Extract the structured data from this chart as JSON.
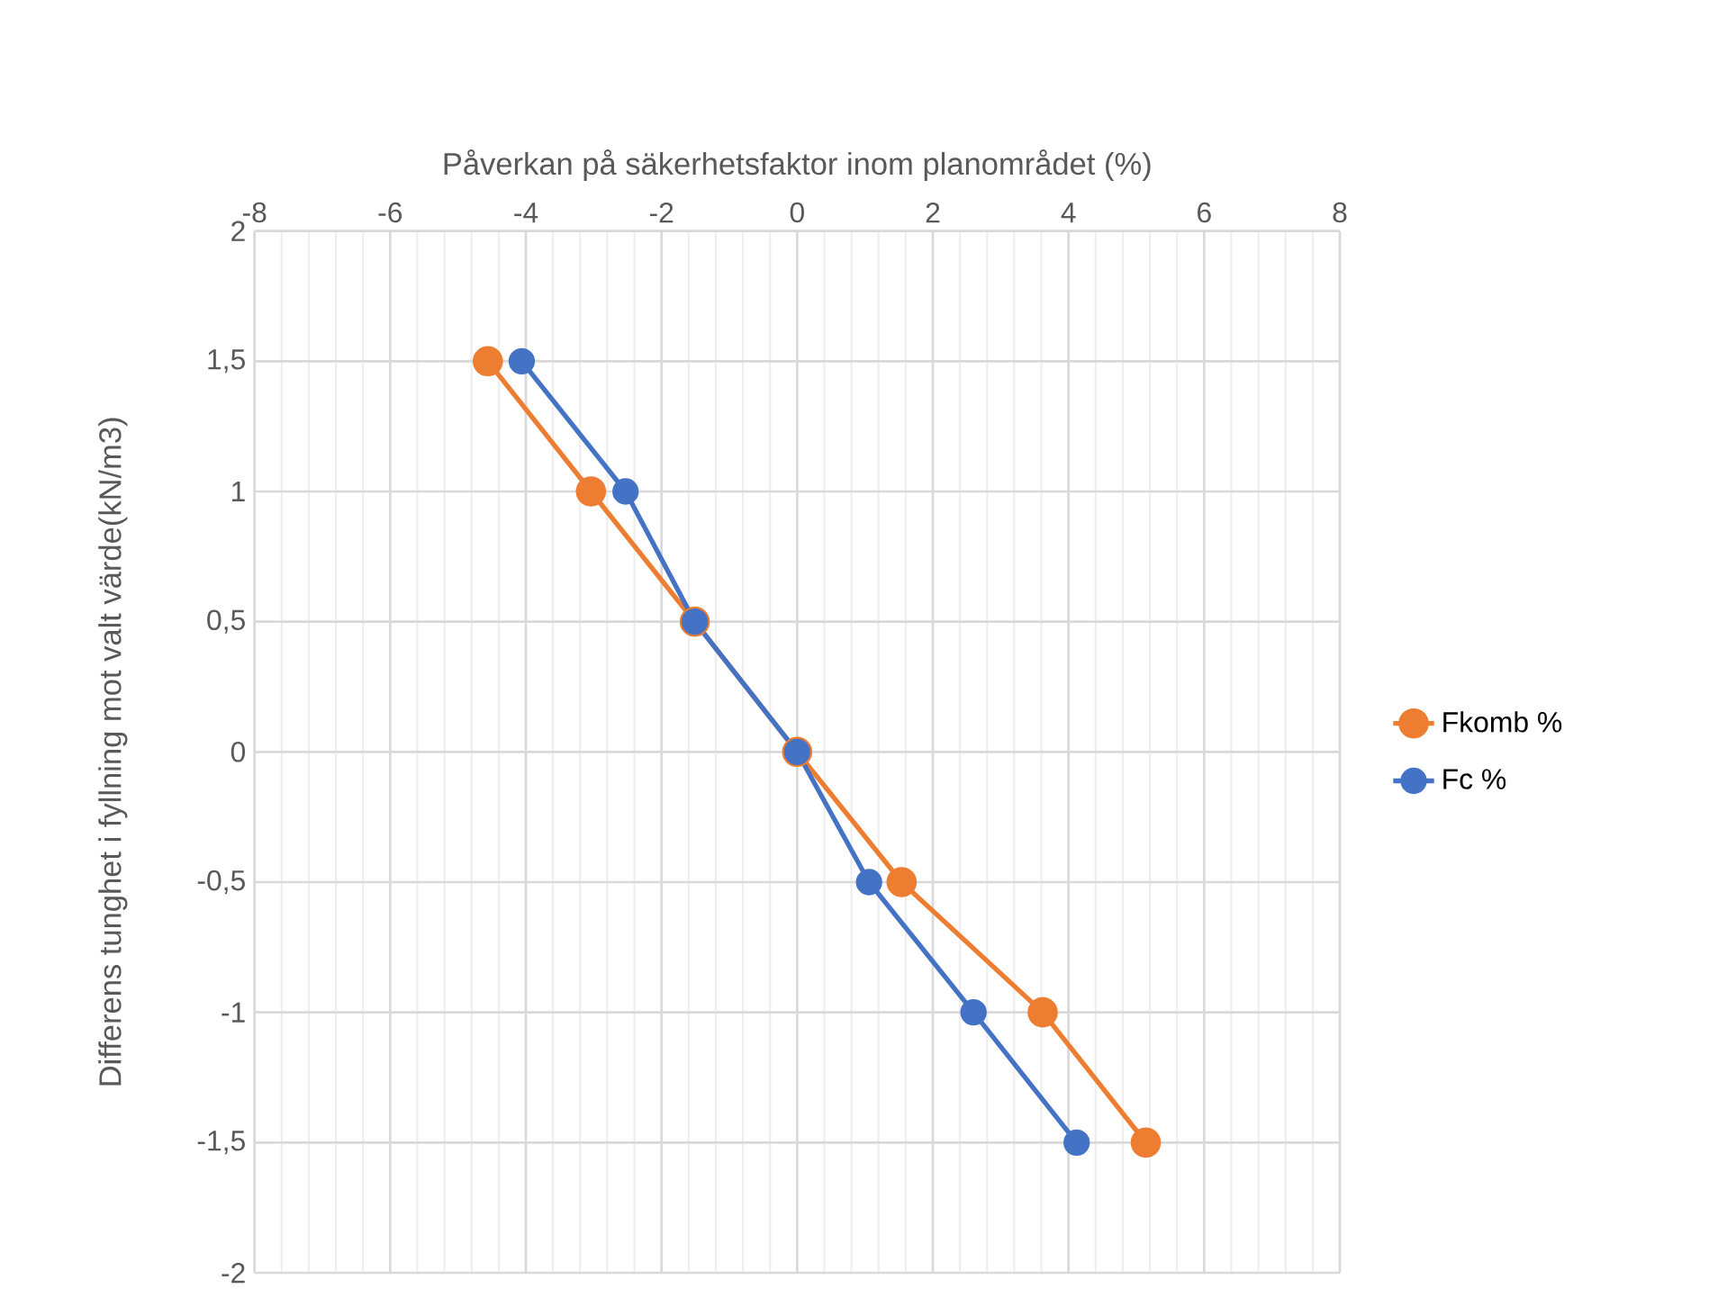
{
  "chart_data": {
    "type": "line",
    "xlabel": "Påverkan på säkerhetsfaktor inom planområdet (%)",
    "ylabel": "Differens tunghet i fyllning mot valt värde(kN/m3)",
    "xlim": [
      -8,
      8
    ],
    "xticks": [
      -8,
      -6,
      -4,
      -2,
      0,
      2,
      4,
      6,
      8
    ],
    "ylim": [
      -2,
      2
    ],
    "yticks": [
      {
        "value": -2,
        "label": "-2"
      },
      {
        "value": -1.5,
        "label": "-1,5"
      },
      {
        "value": -1,
        "label": "-1"
      },
      {
        "value": -0.5,
        "label": "-0,5"
      },
      {
        "value": 0,
        "label": "0"
      },
      {
        "value": 0.5,
        "label": "0,5"
      },
      {
        "value": 1,
        "label": "1"
      },
      {
        "value": 1.5,
        "label": "1,5"
      },
      {
        "value": 2,
        "label": "2"
      }
    ],
    "grid": true,
    "legend": "right",
    "marker": "circle",
    "line_style": "solid",
    "series": [
      {
        "name": "Fkomb %",
        "color": "#ed7d31",
        "x": [
          -4.56,
          -3.04,
          -1.51,
          0,
          1.54,
          3.62,
          5.14
        ],
        "values": [
          1.5,
          1,
          0.5,
          0,
          -0.5,
          -1,
          -1.5
        ]
      },
      {
        "name": "Fc %",
        "color": "#4472c4",
        "x": [
          -4.06,
          -2.53,
          -1.51,
          0,
          1.06,
          2.6,
          4.12
        ],
        "values": [
          1.5,
          1,
          0.5,
          0,
          -0.5,
          -1,
          -1.5
        ]
      }
    ]
  }
}
